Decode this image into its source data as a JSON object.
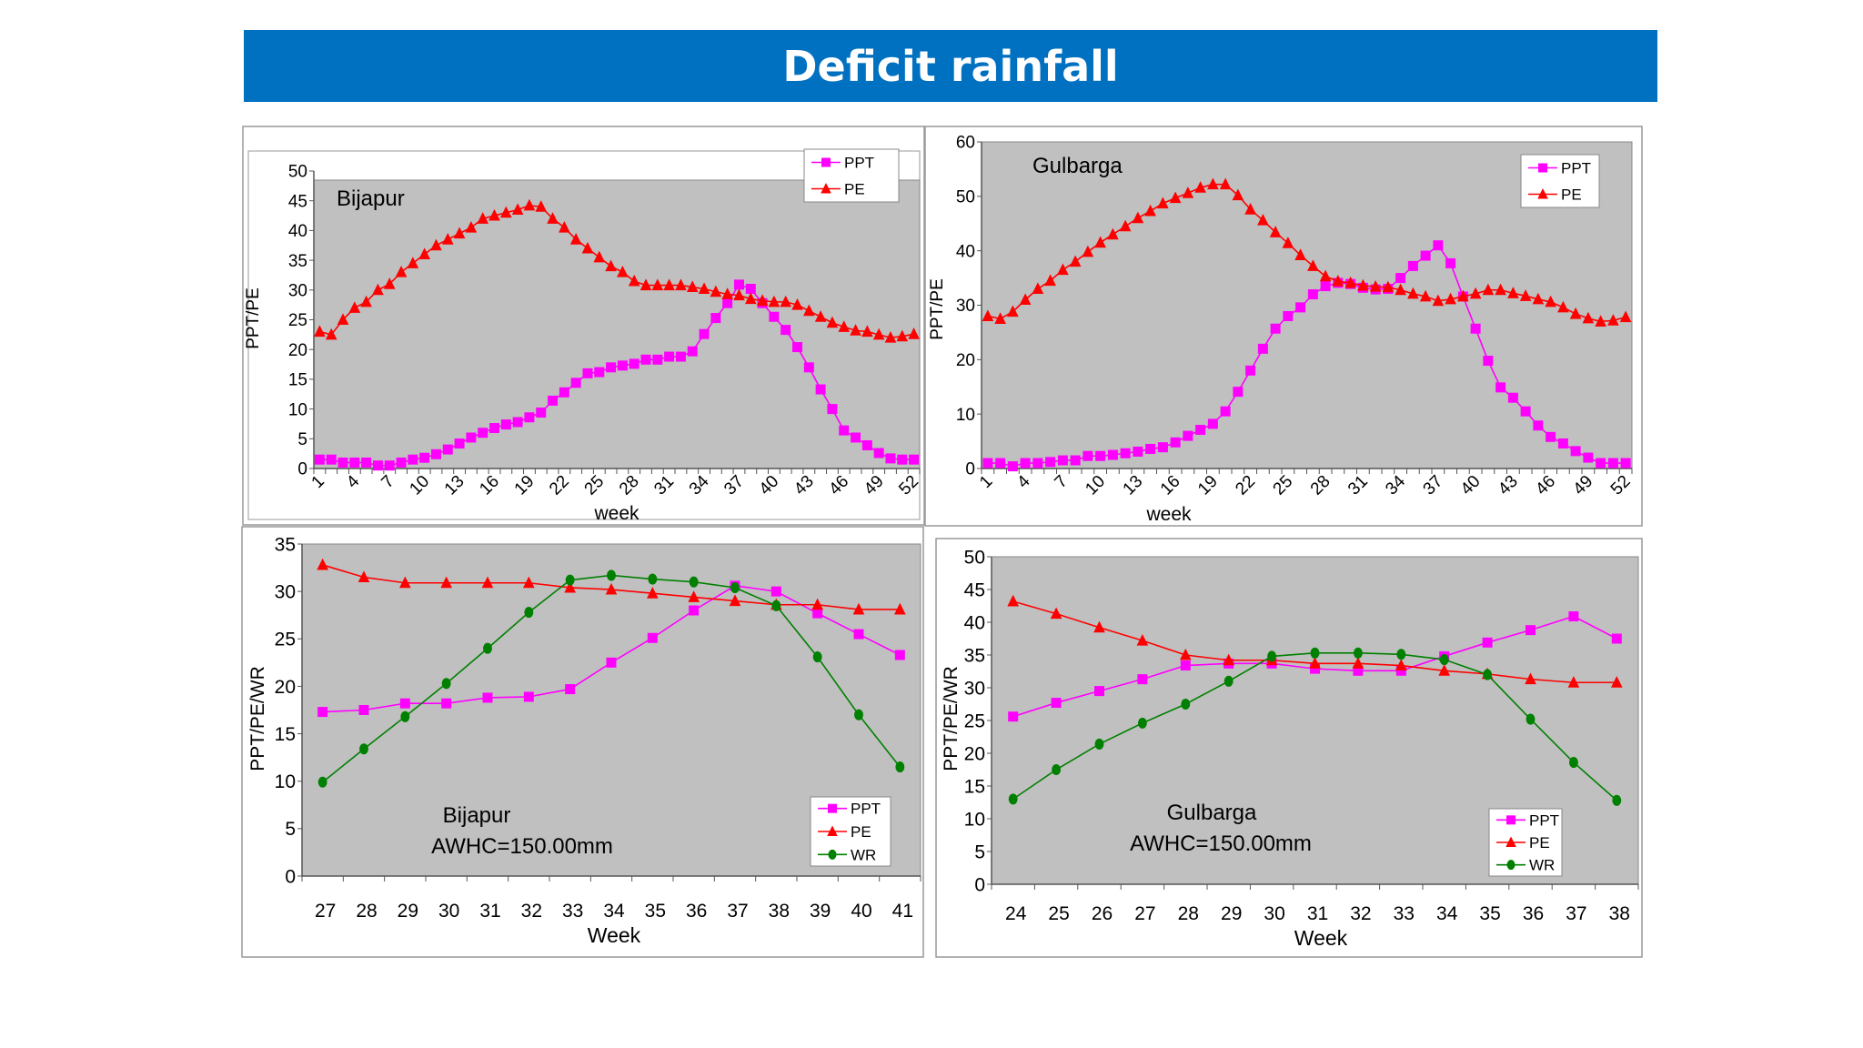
{
  "header": {
    "title": "Deficit rainfall",
    "background": "#0070C0"
  },
  "colors": {
    "plot_bg": "#C0C0C0",
    "PPT": "#FF00FF",
    "PE": "#FF0000",
    "WR": "#008000"
  },
  "chart_data": [
    {
      "type": "line",
      "annotation": "Bijapur",
      "xlabel": "week",
      "ylabel": "PPT/PE",
      "ylim": [
        0,
        50
      ],
      "yticks": [
        0,
        5,
        10,
        15,
        20,
        25,
        30,
        35,
        40,
        45,
        50
      ],
      "x": [
        1,
        2,
        3,
        4,
        5,
        6,
        7,
        8,
        9,
        10,
        11,
        12,
        13,
        14,
        15,
        16,
        17,
        18,
        19,
        20,
        21,
        22,
        23,
        24,
        25,
        26,
        27,
        28,
        29,
        30,
        31,
        32,
        33,
        34,
        35,
        36,
        37,
        38,
        39,
        40,
        41,
        42,
        43,
        44,
        45,
        46,
        47,
        48,
        49,
        50,
        51,
        52
      ],
      "xtick_labels": [
        "1",
        "4",
        "7",
        "10",
        "13",
        "16",
        "19",
        "22",
        "25",
        "28",
        "31",
        "34",
        "37",
        "40",
        "43",
        "46",
        "49",
        "52"
      ],
      "legend": "top-right",
      "series": [
        {
          "name": "PPT",
          "marker": "square",
          "values": [
            1.5,
            1.5,
            1,
            1,
            1,
            0.5,
            0.5,
            1,
            1.5,
            1.8,
            2.4,
            3.2,
            4.2,
            5.2,
            6,
            6.8,
            7.4,
            7.8,
            8.6,
            9.4,
            11.4,
            12.8,
            14.4,
            16,
            16.2,
            17,
            17.3,
            17.6,
            18.3,
            18.3,
            18.8,
            18.8,
            19.7,
            22.6,
            25.3,
            27.8,
            30.9,
            30.2,
            27.8,
            25.5,
            23.3,
            20.4,
            17,
            13.3,
            10,
            6.4,
            5.2,
            3.9,
            2.6,
            1.7,
            1.5,
            1.5
          ]
        },
        {
          "name": "PE",
          "marker": "triangle",
          "values": [
            23,
            22.5,
            25,
            27,
            28,
            30,
            31,
            33,
            34.5,
            36,
            37.5,
            38.5,
            39.5,
            40.5,
            42,
            42.5,
            43,
            43.5,
            44.2,
            44,
            42,
            40.5,
            38.5,
            37,
            35.5,
            34,
            33,
            31.5,
            30.8,
            30.8,
            30.8,
            30.8,
            30.5,
            30.2,
            29.7,
            29.3,
            29.1,
            28.5,
            28.2,
            28,
            28,
            27.5,
            26.5,
            25.5,
            24.5,
            23.8,
            23.2,
            23,
            22.5,
            22,
            22.2,
            22.6
          ]
        }
      ]
    },
    {
      "type": "line",
      "annotation": "Gulbarga",
      "xlabel": "week",
      "ylabel": "PPT/PE",
      "ylim": [
        0,
        60
      ],
      "yticks": [
        0,
        10,
        20,
        30,
        40,
        50,
        60
      ],
      "x": [
        1,
        2,
        3,
        4,
        5,
        6,
        7,
        8,
        9,
        10,
        11,
        12,
        13,
        14,
        15,
        16,
        17,
        18,
        19,
        20,
        21,
        22,
        23,
        24,
        25,
        26,
        27,
        28,
        29,
        30,
        31,
        32,
        33,
        34,
        35,
        36,
        37,
        38,
        39,
        40,
        41,
        42,
        43,
        44,
        45,
        46,
        47,
        48,
        49,
        50,
        51,
        52
      ],
      "xtick_labels": [
        "1",
        "4",
        "7",
        "10",
        "13",
        "16",
        "19",
        "22",
        "25",
        "28",
        "31",
        "34",
        "37",
        "40",
        "43",
        "46",
        "49",
        "52"
      ],
      "legend": "top-right",
      "series": [
        {
          "name": "PPT",
          "marker": "square",
          "values": [
            1,
            1,
            0.4,
            1,
            1,
            1.2,
            1.5,
            1.5,
            2.3,
            2.3,
            2.5,
            2.8,
            3.1,
            3.6,
            3.9,
            4.8,
            6,
            7.1,
            8.2,
            10.5,
            14.1,
            18,
            22,
            25.7,
            28,
            29.6,
            32,
            33.5,
            34.1,
            33.9,
            33.2,
            32.9,
            33,
            35,
            37.2,
            39.1,
            41,
            37.7,
            31.6,
            25.7,
            19.8,
            14.9,
            13,
            10.5,
            7.9,
            5.8,
            4.6,
            3.2,
            2,
            1,
            1,
            1
          ]
        },
        {
          "name": "PE",
          "marker": "triangle",
          "values": [
            28,
            27.5,
            28.8,
            31,
            33,
            34.5,
            36.5,
            38,
            39.8,
            41.5,
            43,
            44.5,
            46,
            47.3,
            48.7,
            49.7,
            50.6,
            51.6,
            52.2,
            52.2,
            50.2,
            47.6,
            45.6,
            43.4,
            41.4,
            39.2,
            37.2,
            35.3,
            34.4,
            34.1,
            33.6,
            33.4,
            33.3,
            32.8,
            32.1,
            31.6,
            30.8,
            31.1,
            31.6,
            32.1,
            32.8,
            32.8,
            32.2,
            31.7,
            31.1,
            30.6,
            29.6,
            28.4,
            27.6,
            27,
            27.2,
            27.8
          ]
        }
      ]
    },
    {
      "type": "line",
      "annotation": "Bijapur",
      "annotation2": "AWHC=150.00mm",
      "xlabel": "Week",
      "ylabel": "PPT/PE/WR",
      "ylim": [
        0,
        35
      ],
      "yticks": [
        0,
        5,
        10,
        15,
        20,
        25,
        30,
        35
      ],
      "x": [
        27,
        28,
        29,
        30,
        31,
        32,
        33,
        34,
        35,
        36,
        37,
        38,
        39,
        40,
        41
      ],
      "xtick_labels": [
        "27",
        "28",
        "29",
        "30",
        "31",
        "32",
        "33",
        "34",
        "35",
        "36",
        "37",
        "38",
        "39",
        "40",
        "41"
      ],
      "legend": "bottom-right",
      "series": [
        {
          "name": "PPT",
          "marker": "square",
          "values": [
            17.3,
            17.5,
            18.2,
            18.2,
            18.8,
            18.9,
            19.7,
            22.5,
            25.1,
            28,
            30.6,
            30,
            27.7,
            25.5,
            23.3
          ]
        },
        {
          "name": "PE",
          "marker": "triangle",
          "values": [
            32.8,
            31.5,
            30.9,
            30.9,
            30.9,
            30.9,
            30.4,
            30.2,
            29.8,
            29.4,
            29,
            28.6,
            28.6,
            28.1,
            28.1
          ]
        },
        {
          "name": "WR",
          "marker": "circle",
          "values": [
            9.9,
            13.4,
            16.8,
            20.3,
            24,
            27.8,
            31.2,
            31.7,
            31.3,
            31,
            30.4,
            28.5,
            23.1,
            17,
            11.5
          ]
        }
      ]
    },
    {
      "type": "line",
      "annotation": "Gulbarga",
      "annotation2": "AWHC=150.00mm",
      "xlabel": "Week",
      "ylabel": "PPT/PE/WR",
      "ylim": [
        0,
        50
      ],
      "yticks": [
        0,
        5,
        10,
        15,
        20,
        25,
        30,
        35,
        40,
        45,
        50
      ],
      "x": [
        24,
        25,
        26,
        27,
        28,
        29,
        30,
        31,
        32,
        33,
        34,
        35,
        36,
        37,
        38
      ],
      "xtick_labels": [
        "24",
        "25",
        "26",
        "27",
        "28",
        "29",
        "30",
        "31",
        "32",
        "33",
        "34",
        "35",
        "36",
        "37",
        "38"
      ],
      "legend": "bottom-right",
      "series": [
        {
          "name": "PPT",
          "marker": "square",
          "values": [
            25.6,
            27.7,
            29.5,
            31.3,
            33.4,
            33.7,
            33.7,
            32.9,
            32.6,
            32.6,
            34.8,
            36.9,
            38.8,
            40.9,
            37.5
          ]
        },
        {
          "name": "PE",
          "marker": "triangle",
          "values": [
            43.2,
            41.3,
            39.2,
            37.2,
            35,
            34.2,
            34.2,
            33.7,
            33.7,
            33.4,
            32.6,
            32.1,
            31.3,
            30.8,
            30.8
          ]
        },
        {
          "name": "WR",
          "marker": "circle",
          "values": [
            13,
            17.5,
            21.4,
            24.6,
            27.5,
            31,
            34.8,
            35.3,
            35.3,
            35.1,
            34.3,
            32,
            25.2,
            18.6,
            12.8
          ]
        }
      ]
    }
  ]
}
